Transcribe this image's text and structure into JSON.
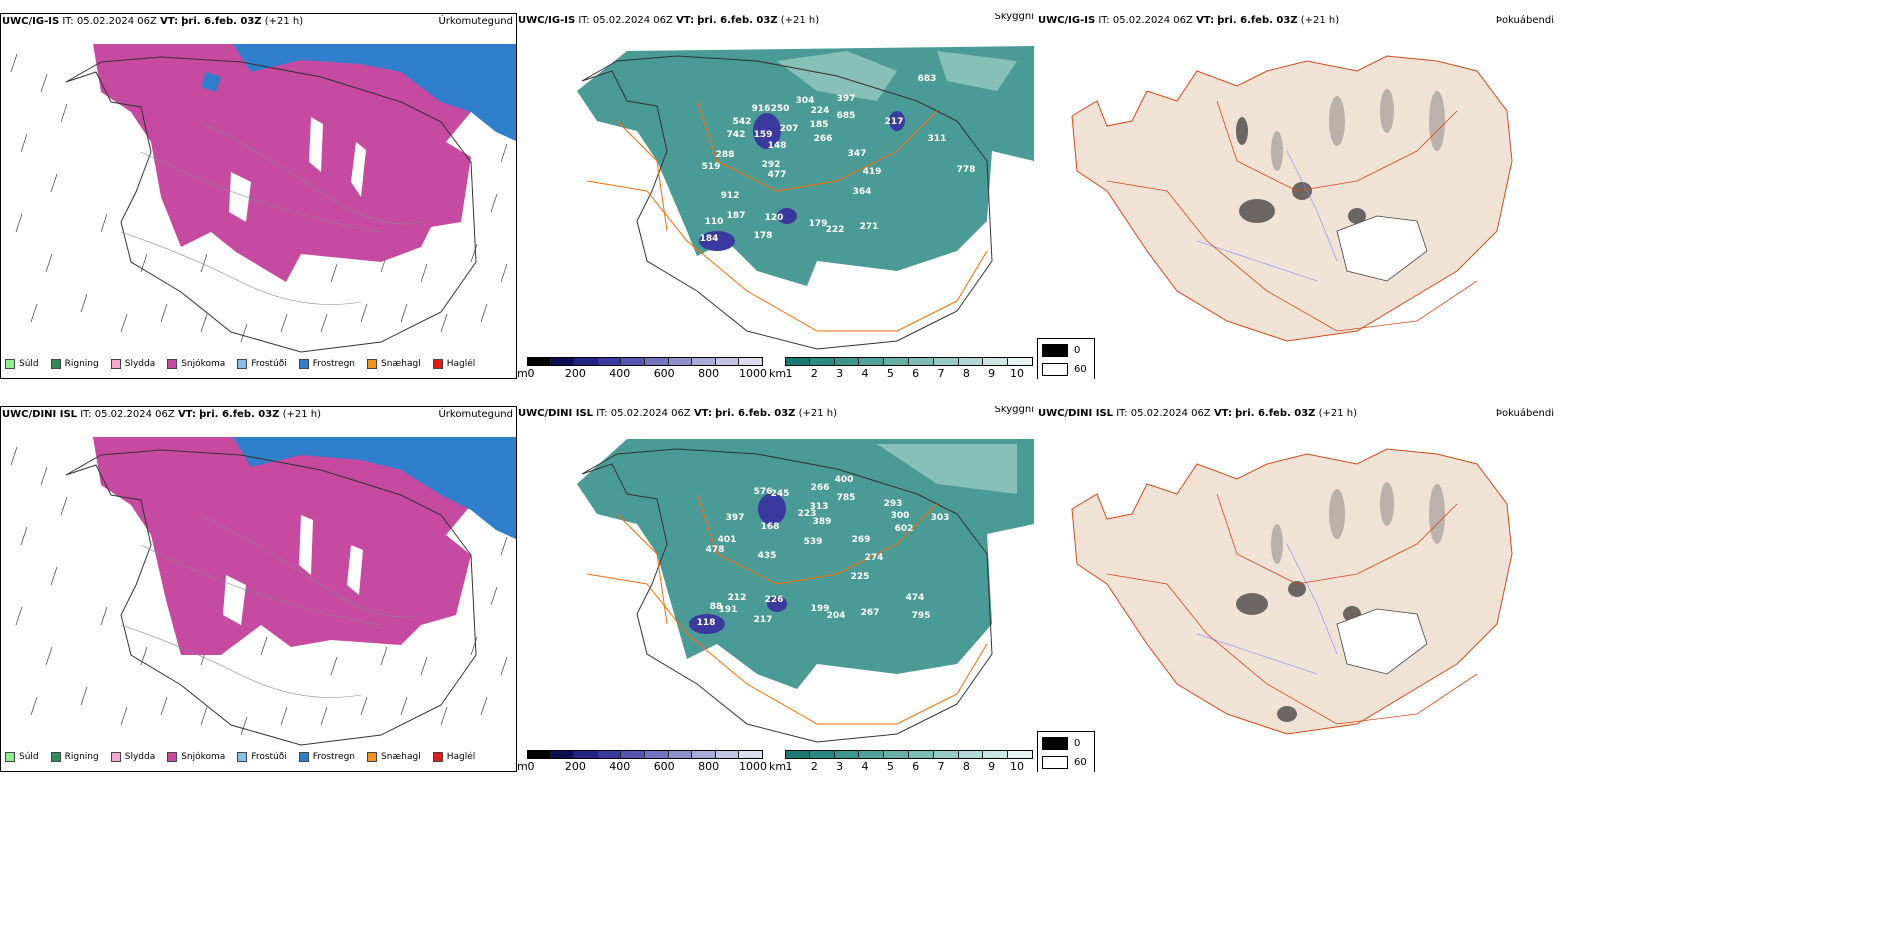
{
  "rows": [
    {
      "model": "UWC/IG-IS",
      "it_label": "IT:",
      "it_value": "05.02.2024 06Z",
      "vt_label": "VT:",
      "vt_value": "þri. 6.feb. 03Z",
      "lead": "(+21 h)",
      "panels": {
        "precip_title": "Úrkomutegund",
        "vis_title": "Skyggni",
        "fog_title": "Þokuábendi"
      },
      "visibility_labels": [
        "683",
        "916",
        "250",
        "304",
        "397",
        "224",
        "685",
        "542",
        "742",
        "159",
        "207",
        "185",
        "266",
        "217",
        "148",
        "288",
        "311",
        "292",
        "347",
        "519",
        "477",
        "419",
        "778",
        "912",
        "364",
        "187",
        "110",
        "120",
        "179",
        "222",
        "271",
        "178",
        "184"
      ]
    },
    {
      "model": "UWC/DINI ISL",
      "it_label": "IT:",
      "it_value": "05.02.2024 06Z",
      "vt_label": "VT:",
      "vt_value": "þri. 6.feb. 03Z",
      "lead": "(+21 h)",
      "panels": {
        "precip_title": "Úrkomutegund",
        "vis_title": "Skyggni",
        "fog_title": "Þokuábendi"
      },
      "visibility_labels": [
        "400",
        "576",
        "245",
        "266",
        "785",
        "313",
        "293",
        "223",
        "389",
        "300",
        "397",
        "168",
        "602",
        "303",
        "401",
        "539",
        "478",
        "269",
        "435",
        "274",
        "225",
        "226",
        "212",
        "199",
        "204",
        "267",
        "474",
        "795",
        "88",
        "191",
        "217",
        "118"
      ]
    }
  ],
  "precip_legend": [
    {
      "label": "Súld",
      "color": "#90ee90"
    },
    {
      "label": "Rigning",
      "color": "#2e8b57"
    },
    {
      "label": "Slydda",
      "color": "#f4a6d0"
    },
    {
      "label": "Snjókoma",
      "color": "#c64aa0"
    },
    {
      "label": "Frostúði",
      "color": "#87bfe8"
    },
    {
      "label": "Frostregn",
      "color": "#2f7fcc"
    },
    {
      "label": "Snæhagl",
      "color": "#f0931e"
    },
    {
      "label": "Haglél",
      "color": "#e01b1b"
    }
  ],
  "ceiling_bar": {
    "unit": "m",
    "ticks": [
      "0",
      "200",
      "400",
      "600",
      "800",
      "1000"
    ],
    "colors": [
      "#000000",
      "#0d0d50",
      "#232384",
      "#3a3a9e",
      "#5656b0",
      "#7474c0",
      "#8f8fcc",
      "#aaaad8",
      "#c4c4e2",
      "#dcdcee"
    ]
  },
  "vis_bar": {
    "unit": "km",
    "ticks": [
      "1",
      "2",
      "3",
      "4",
      "5",
      "6",
      "7",
      "8",
      "9",
      "10"
    ],
    "colors": [
      "#1a7a72",
      "#2a8a82",
      "#3b968e",
      "#4fa39b",
      "#66b0a8",
      "#7ebdb6",
      "#98cac4",
      "#b2d8d3",
      "#cce6e2",
      "#e6f3f1"
    ]
  },
  "cover_legend": {
    "items": [
      {
        "label": "0",
        "color": "#000000"
      },
      {
        "label": "60",
        "color": "#ffffff"
      }
    ]
  },
  "colors": {
    "snow": "#c64aa0",
    "freezing_rain": "#2f7fcc",
    "vis_teal": "#2a8a82",
    "land_fog": "#f1e2d6",
    "roads": "#ff6a00"
  }
}
